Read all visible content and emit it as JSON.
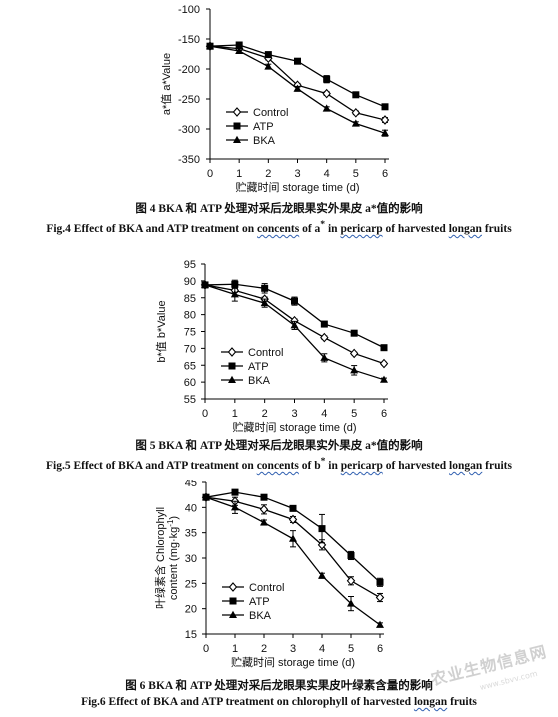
{
  "chart_data": [
    {
      "type": "line",
      "x": [
        0,
        1,
        2,
        3,
        4,
        5,
        6
      ],
      "ylim": [
        -350,
        -100
      ],
      "yticks": [
        -100,
        -150,
        -200,
        -250,
        -300,
        -350
      ],
      "xlim": [
        0,
        6
      ],
      "xlabel": "贮藏时间 storage time (d)",
      "ylabel": "a*值 a*Value",
      "legend_position": "lower-left",
      "series": [
        {
          "name": "Control",
          "marker": "diamond-open",
          "values": [
            -162,
            -166,
            -182,
            -227,
            -241,
            -273,
            -285
          ],
          "errors": [
            3,
            3,
            3,
            3,
            3,
            3,
            4
          ]
        },
        {
          "name": "ATP",
          "marker": "square",
          "values": [
            -162,
            -160,
            -176,
            -187,
            -217,
            -243,
            -263
          ],
          "errors": [
            3,
            5,
            3,
            3,
            6,
            4,
            3
          ]
        },
        {
          "name": "BKA",
          "marker": "triangle",
          "values": [
            -162,
            -170,
            -196,
            -233,
            -266,
            -291,
            -307
          ],
          "errors": [
            3,
            4,
            4,
            4,
            3,
            3,
            5
          ]
        }
      ],
      "caption_cn": "图 4 BKA 和 ATP 处理对采后龙眼果实外果皮 a*值的影响",
      "caption_en_parts": [
        "Fig.4 Effect of BKA and ATP treatment on ",
        "concents",
        " of a",
        "*",
        " in ",
        "pericarp",
        " of harvested ",
        "longan",
        " fruits"
      ]
    },
    {
      "type": "line",
      "x": [
        0,
        1,
        2,
        3,
        4,
        5,
        6
      ],
      "ylim": [
        55,
        95
      ],
      "yticks": [
        95,
        90,
        85,
        80,
        75,
        70,
        65,
        60,
        55
      ],
      "xlim": [
        0,
        6
      ],
      "xlabel": "贮藏时间 storage time (d)",
      "ylabel": "b*值 b*Value",
      "legend_position": "lower-left",
      "series": [
        {
          "name": "Control",
          "marker": "diamond-open",
          "values": [
            88.8,
            87.2,
            84.6,
            78.2,
            73.2,
            68.5,
            65.5
          ],
          "errors": [
            0.5,
            0.6,
            0.6,
            0.5,
            0.5,
            0.4,
            0.4
          ]
        },
        {
          "name": "ATP",
          "marker": "square",
          "values": [
            88.8,
            89.0,
            87.8,
            84.0,
            77.2,
            74.5,
            70.2
          ],
          "errors": [
            0.5,
            1.2,
            1.4,
            1.2,
            0.5,
            0.4,
            0.4
          ]
        },
        {
          "name": "BKA",
          "marker": "triangle",
          "values": [
            88.8,
            86.0,
            83.4,
            76.8,
            67.2,
            63.5,
            60.7
          ],
          "errors": [
            0.5,
            2.0,
            1.2,
            1.2,
            1.2,
            1.4,
            0.5
          ]
        }
      ],
      "caption_cn": "图 5 BKA 和 ATP 处理对采后龙眼果实外果皮 a*值的影响",
      "caption_en_parts": [
        "Fig.5 Effect of BKA and ATP treatment on ",
        "concents",
        " of b",
        "*",
        " in ",
        "pericarp",
        " of harvested ",
        "longan",
        " fruits"
      ]
    },
    {
      "type": "line",
      "x": [
        0,
        1,
        2,
        3,
        4,
        5,
        6
      ],
      "ylim": [
        15,
        45
      ],
      "yticks": [
        45,
        40,
        35,
        30,
        25,
        20,
        15
      ],
      "xlim": [
        0,
        6
      ],
      "xlabel": "贮藏时间 storage time (d)",
      "ylabel_line1": "叶绿素含 Chlorophyll",
      "ylabel_line2": "content (mg·kg",
      "ylabel_sup": "-1",
      "ylabel_end": ")",
      "legend_position": "lower-left",
      "series": [
        {
          "name": "Control",
          "marker": "diamond-open",
          "values": [
            42.0,
            41.2,
            39.6,
            37.6,
            32.6,
            25.5,
            22.2
          ],
          "errors": [
            0.5,
            0.8,
            0.9,
            0.6,
            1.0,
            0.8,
            0.8
          ]
        },
        {
          "name": "ATP",
          "marker": "square",
          "values": [
            42.0,
            43.0,
            42.0,
            39.8,
            35.8,
            30.5,
            25.2
          ],
          "errors": [
            0.5,
            0.5,
            0.5,
            0.5,
            2.8,
            0.8,
            0.8
          ]
        },
        {
          "name": "BKA",
          "marker": "triangle",
          "values": [
            42.0,
            40.0,
            37.0,
            33.8,
            26.5,
            21.0,
            16.8
          ],
          "errors": [
            0.5,
            1.2,
            0.5,
            1.6,
            0.5,
            1.4,
            0.4
          ]
        }
      ],
      "caption_cn": "图 6 BKA 和 ATP 处理对采后龙眼果实果皮叶绿素含量的影响",
      "caption_en_parts": [
        "Fig.6 Effect of BKA and ATP treatment on chlorophyll of harvested ",
        "longan",
        " fruits"
      ]
    }
  ],
  "watermark": "农业生物信息网",
  "watermark_url": "www.sbvv.com"
}
